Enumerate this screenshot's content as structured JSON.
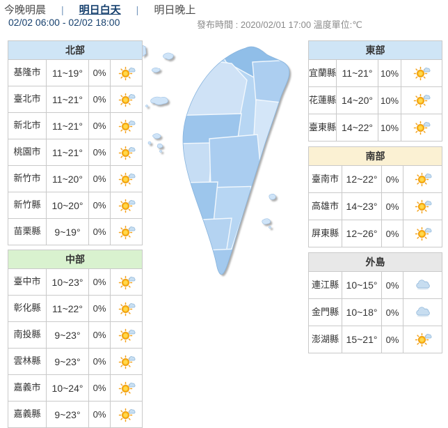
{
  "tabs": [
    {
      "label": "今晚明晨",
      "active": false
    },
    {
      "label": "明日白天",
      "active": true
    },
    {
      "label": "明日晚上",
      "active": false
    }
  ],
  "separator": "|",
  "time_range": "02/02 06:00 - 02/02 18:00",
  "publish_info": "發布時間 : 2020/02/01 17:00 溫度單位:℃",
  "colors": {
    "accent_navy": "#16406e",
    "table_border": "#c9c9c9",
    "header_north": "#cfe5f6",
    "header_central": "#d9f2cf",
    "header_east": "#cfe5f6",
    "header_south": "#fbf1d3",
    "header_islands": "#e8e8e8"
  },
  "icons": {
    "sun-cloud": "sunny-with-cloud",
    "cloud": "cloudy"
  },
  "regions": [
    {
      "id": "north",
      "name": "北部",
      "header_color": "#cfe5f6",
      "column": "left",
      "rows": [
        {
          "city": "基隆市",
          "temp": "11~19°",
          "pop": "0%",
          "icon": "sun-cloud"
        },
        {
          "city": "臺北市",
          "temp": "11~21°",
          "pop": "0%",
          "icon": "sun-cloud"
        },
        {
          "city": "新北市",
          "temp": "11~21°",
          "pop": "0%",
          "icon": "sun-cloud"
        },
        {
          "city": "桃園市",
          "temp": "11~21°",
          "pop": "0%",
          "icon": "sun-cloud"
        },
        {
          "city": "新竹市",
          "temp": "11~20°",
          "pop": "0%",
          "icon": "sun-cloud"
        },
        {
          "city": "新竹縣",
          "temp": "10~20°",
          "pop": "0%",
          "icon": "sun-cloud"
        },
        {
          "city": "苗栗縣",
          "temp": "9~19°",
          "pop": "0%",
          "icon": "sun-cloud"
        }
      ]
    },
    {
      "id": "central",
      "name": "中部",
      "header_color": "#d9f2cf",
      "column": "left",
      "rows": [
        {
          "city": "臺中市",
          "temp": "10~23°",
          "pop": "0%",
          "icon": "sun-cloud"
        },
        {
          "city": "彰化縣",
          "temp": "11~22°",
          "pop": "0%",
          "icon": "sun-cloud"
        },
        {
          "city": "南投縣",
          "temp": "9~23°",
          "pop": "0%",
          "icon": "sun-cloud"
        },
        {
          "city": "雲林縣",
          "temp": "9~23°",
          "pop": "0%",
          "icon": "sun-cloud"
        },
        {
          "city": "嘉義市",
          "temp": "10~24°",
          "pop": "0%",
          "icon": "sun-cloud"
        },
        {
          "city": "嘉義縣",
          "temp": "9~23°",
          "pop": "0%",
          "icon": "sun-cloud"
        }
      ]
    },
    {
      "id": "east",
      "name": "東部",
      "header_color": "#cfe5f6",
      "column": "right",
      "rows": [
        {
          "city": "宜蘭縣",
          "temp": "11~21°",
          "pop": "10%",
          "icon": "sun-cloud"
        },
        {
          "city": "花蓮縣",
          "temp": "14~20°",
          "pop": "10%",
          "icon": "sun-cloud"
        },
        {
          "city": "臺東縣",
          "temp": "14~22°",
          "pop": "10%",
          "icon": "sun-cloud"
        }
      ]
    },
    {
      "id": "south",
      "name": "南部",
      "header_color": "#fbf1d3",
      "column": "right",
      "rows": [
        {
          "city": "臺南市",
          "temp": "12~22°",
          "pop": "0%",
          "icon": "sun-cloud"
        },
        {
          "city": "高雄市",
          "temp": "14~23°",
          "pop": "0%",
          "icon": "sun-cloud"
        },
        {
          "city": "屏東縣",
          "temp": "12~26°",
          "pop": "0%",
          "icon": "sun-cloud"
        }
      ]
    },
    {
      "id": "islands",
      "name": "外島",
      "header_color": "#e8e8e8",
      "column": "right",
      "rows": [
        {
          "city": "連江縣",
          "temp": "10~15°",
          "pop": "0%",
          "icon": "cloud"
        },
        {
          "city": "金門縣",
          "temp": "10~18°",
          "pop": "0%",
          "icon": "cloud"
        },
        {
          "city": "澎湖縣",
          "temp": "15~21°",
          "pop": "0%",
          "icon": "sun-cloud"
        }
      ]
    }
  ]
}
